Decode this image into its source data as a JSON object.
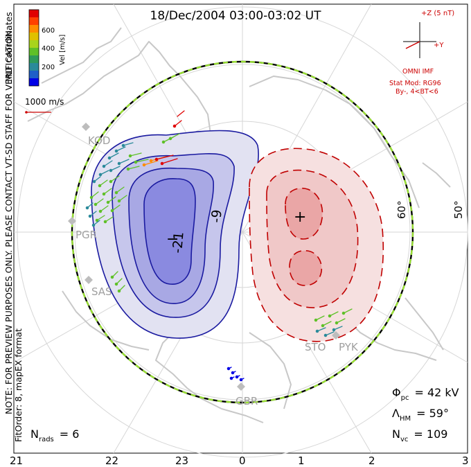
{
  "title": "18/Dec/2004 03:00-03:02 UT",
  "side_note": {
    "line1": "NOTE: FOR PREVIEW PURPOSES ONLY. PLEASE CONTACT VT-SD STAFF FOR VERIFICATION.",
    "line2": "FitOrder: 8, mapEX format"
  },
  "coords_label": "MLT coordinates",
  "colorbar": {
    "unit_label": "Vel [m/s]",
    "ticks": [
      "200",
      "400",
      "600"
    ],
    "colors": [
      "#0000e6",
      "#1f5fc8",
      "#2a8a9a",
      "#2e9a5a",
      "#5fc028",
      "#a8d41c",
      "#e0c000",
      "#ff8c00",
      "#ff4000",
      "#e00000"
    ]
  },
  "reference_vector": {
    "label": "1000 m/s",
    "color": "#cc0000"
  },
  "imf": {
    "z_label": "+Z (5 nT)",
    "y_label": "+Y",
    "source": "OMNI IMF",
    "model_line1": "Stat Mod: RG96",
    "model_line2": "By-, 4<BT<6",
    "color": "#cc0000"
  },
  "latitude_labels": [
    "60°",
    "50°"
  ],
  "mlt_labels": [
    "21",
    "22",
    "23",
    "0",
    "1",
    "2",
    "3"
  ],
  "contour_labels": [
    "-21",
    "-9"
  ],
  "extrema_markers": [
    "−",
    "+"
  ],
  "stations": [
    "KOD",
    "PGR",
    "SAS",
    "STO",
    "PYK",
    "GBR"
  ],
  "stats": {
    "phi_pc_symbol": "Φ",
    "phi_pc_sub": "pc",
    "phi_pc_value": "= 42 kV",
    "lambda_symbol": "Λ",
    "lambda_sub": "HM",
    "lambda_value": "= 59°",
    "nvc_symbol": "N",
    "nvc_sub": "vc",
    "nvc_value": "= 109",
    "nrads_symbol": "N",
    "nrads_sub": "rads",
    "nrads_value": "= 6"
  },
  "colors": {
    "negative_cell": "#1a1aa0",
    "positive_cell": "#c00000",
    "boundary_green": "#99e033",
    "coast": "#c8c8c8",
    "grid": "#d6d6d6"
  }
}
